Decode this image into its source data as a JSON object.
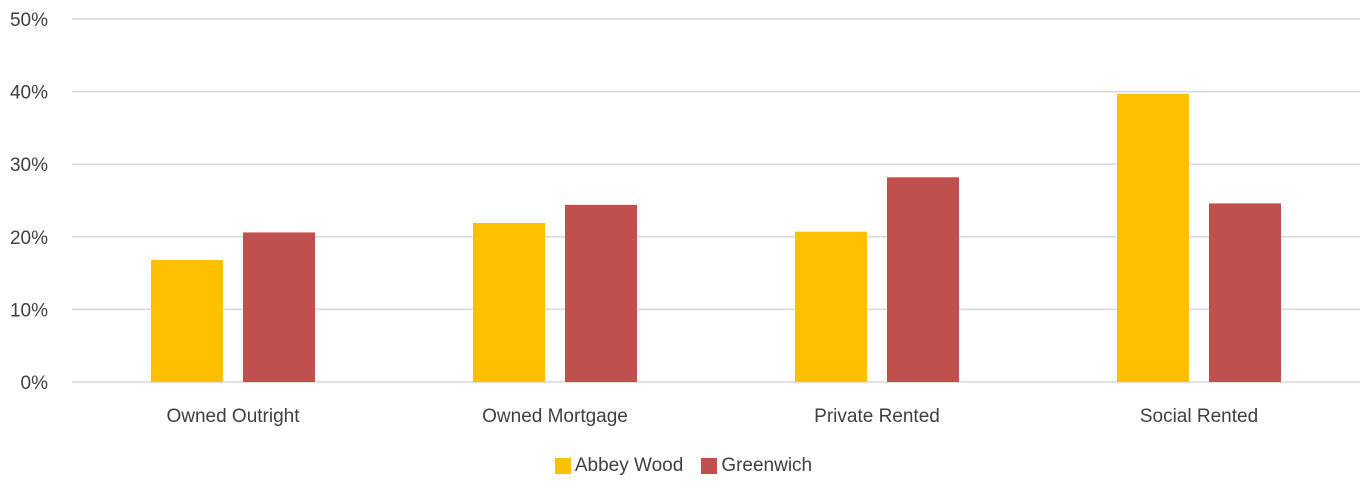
{
  "chart_data": {
    "type": "bar",
    "title": "",
    "xlabel": "",
    "ylabel": "",
    "ylim": [
      0,
      50
    ],
    "yticks": [
      "0%",
      "10%",
      "20%",
      "30%",
      "40%",
      "50%"
    ],
    "ytick_values": [
      0,
      10,
      20,
      30,
      40,
      50
    ],
    "grid": true,
    "legend_position": "bottom",
    "categories": [
      "Owned Outright",
      "Owned Mortgage",
      "Private Rented",
      "Social Rented"
    ],
    "series": [
      {
        "name": "Abbey Wood",
        "color": "#FFC000",
        "values": [
          16.8,
          21.9,
          20.7,
          39.7
        ]
      },
      {
        "name": "Greenwich",
        "color": "#C0504D",
        "values": [
          20.6,
          24.4,
          28.2,
          24.6
        ]
      }
    ]
  }
}
